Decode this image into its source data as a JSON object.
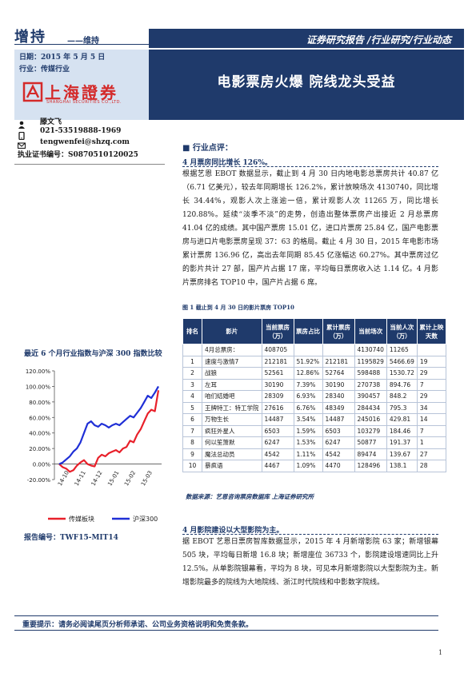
{
  "header": {
    "rating": "增持",
    "rating_sub": "——维持",
    "banner": "证券研究报告 /行业研究/行业动态",
    "date": "日期：2015 年 5 月 5 日",
    "industry": "行业：传媒行业",
    "logo_cn": "上海證券",
    "logo_en": "SHANGHAI SECURITIES CO.,LTD.",
    "title": "电影票房火爆  院线龙头受益"
  },
  "analyst": {
    "name": "滕文飞",
    "phone": "021-53519888-1969",
    "email": "tengwenfei@shzq.com",
    "license": "执业证书编号：S0870510120025"
  },
  "left_chart": {
    "title": "最近 6 个月行业指数与沪深 300 指数比较",
    "chart_data": {
      "type": "line",
      "x_ticks": [
        "14-10",
        "14-11",
        "14-12",
        "15-01",
        "15-02",
        "15-03"
      ],
      "ylim": [
        -20,
        120
      ],
      "y_ticks": [
        "120.00%",
        "100.00%",
        "80.00%",
        "60.00%",
        "40.00%",
        "20.00%",
        "0.00%",
        "-20.00%"
      ],
      "series": [
        {
          "name": "传媒板块",
          "color": "#e8202a",
          "values": [
            0,
            -4,
            -6,
            -10,
            -8,
            -2,
            2,
            5,
            0,
            -2,
            -3,
            8,
            12,
            10,
            14,
            16,
            18,
            15,
            20,
            22,
            30,
            28,
            38,
            45,
            55,
            65,
            70,
            68,
            95
          ]
        },
        {
          "name": "沪深300",
          "color": "#1f2fd6",
          "values": [
            0,
            2,
            6,
            10,
            16,
            20,
            28,
            40,
            52,
            55,
            50,
            48,
            52,
            50,
            47,
            50,
            52,
            50,
            54,
            58,
            62,
            60,
            66,
            72,
            80,
            88,
            85,
            92,
            100
          ]
        }
      ]
    }
  },
  "report_no": "报告编号：TWF15-MIT14",
  "section_title": "■   行业点评：",
  "block1": {
    "head": "4 月票房同比增长 126%。",
    "text": "根据艺恩 EBOT 数据显示，截止到 4 月 30 日内地电影总票房共计 40.87 亿（6.71 亿美元），较去年同期增长 126.2%，累计放映场次 4130740，同比增长 34.44%，观影人次上涨逾一倍，累计观影人次 11265 万，同比增长 120.88%。延续“淡季不淡”的走势，创造出整体票房产出接近 2 月总票房 41.04 亿的成绩。其中国产票房 15.01 亿，进口片票房 25.84 亿，国产电影票房与进口片电影票房呈现 37：63 的格局。截止 4 月 30 日，2015 年电影市场累计票房 136.96 亿，高出去年同期 85.45 亿涨幅达 60.27%。其中票房过亿的影片共计 27 部，国产片占据 17 席，平均每日票房收入达 1.14 亿。4 月影片票房排名 TOP10 中，国产片占据 6 席。"
  },
  "table": {
    "title": "图 1  截止到 4 月 30 日的影片票房 TOP10",
    "headers": [
      "排名",
      "影片",
      "当前票房（万）",
      "票房占比",
      "累计票房（万）",
      "当前场次",
      "当前人次（万）",
      "累计上映天数"
    ],
    "rows": [
      [
        "",
        "4月总票房：",
        "408705",
        "",
        "",
        "4130740",
        "11265",
        ""
      ],
      [
        "1",
        "速度与激情7",
        "212181",
        "51.92%",
        "212181",
        "1195829",
        "5466.69",
        "19"
      ],
      [
        "2",
        "战狼",
        "52561",
        "12.86%",
        "52764",
        "598488",
        "1530.72",
        "29"
      ],
      [
        "3",
        "左耳",
        "30190",
        "7.39%",
        "30190",
        "270738",
        "894.76",
        "7"
      ],
      [
        "4",
        "咱们结婚吧",
        "28309",
        "6.93%",
        "28340",
        "390457",
        "848.2",
        "29"
      ],
      [
        "5",
        "王牌特工：特工学院",
        "27616",
        "6.76%",
        "48349",
        "284434",
        "795.3",
        "34"
      ],
      [
        "6",
        "万物生长",
        "14487",
        "3.54%",
        "14487",
        "245016",
        "429.81",
        "14"
      ],
      [
        "7",
        "疯狂外星人",
        "6503",
        "1.59%",
        "6503",
        "103279",
        "184.46",
        "7"
      ],
      [
        "8",
        "何以笙箫默",
        "6247",
        "1.53%",
        "6247",
        "50877",
        "191.37",
        "1"
      ],
      [
        "9",
        "魔法总动员",
        "4542",
        "1.11%",
        "4542",
        "89474",
        "139.67",
        "27"
      ],
      [
        "10",
        "暴疯语",
        "4467",
        "1.09%",
        "4470",
        "128496",
        "138.1",
        "28"
      ]
    ],
    "source": "数据来源：艺恩咨询票房数据库  上海证券研究所"
  },
  "block2": {
    "head": "4 月影院建设以大型影院为主。",
    "text": "据 EBOT 艺恩日票房智库数据显示，2015 年 4 月新增影院 63 家；新增银幕 505 块，平均每日新增 16.8 块；新增座位 36733 个，影院建设增速同比上升 12.5%。从单影院银幕看，平均为 8 块，可见本月新增影院以大型影院为主。新增影院最多的院线为大地院线、浙江时代院线和中影数字院线。"
  },
  "footer": {
    "note": "重要提示：请务必阅读尾页分析师承诺、公司业务资格说明和免责条款。",
    "page": "1"
  },
  "colors": {
    "brand_navy": "#1f3a6b",
    "logo_red": "#d42a2a",
    "meta_bg": "#d6e2f1"
  }
}
